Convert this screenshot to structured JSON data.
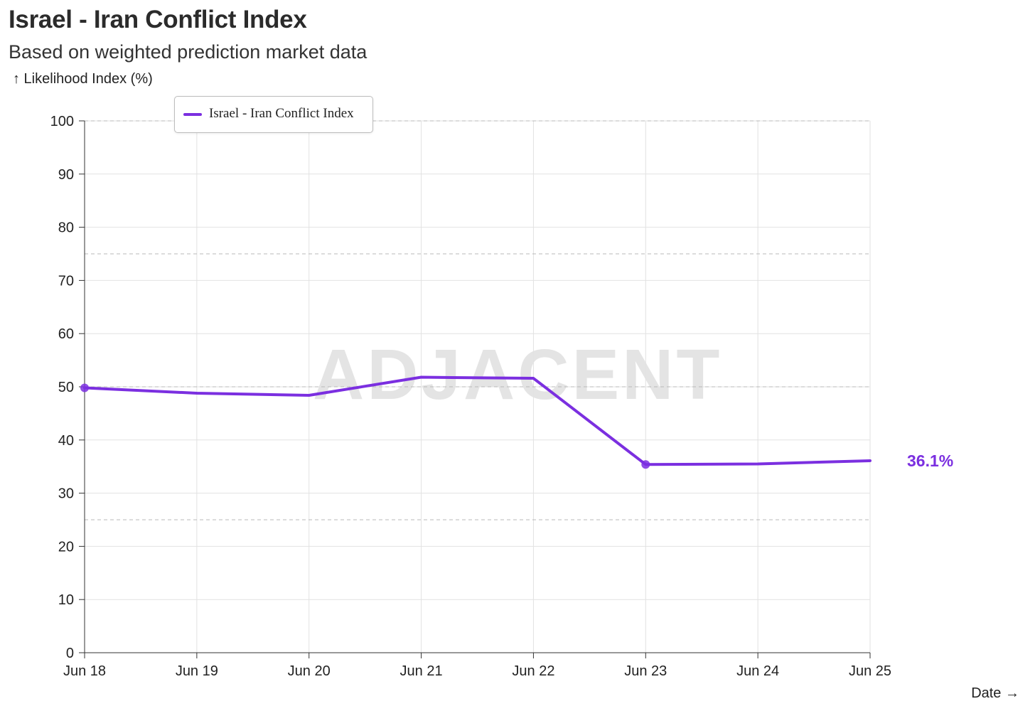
{
  "title": "Israel - Iran Conflict Index",
  "subtitle": "Based on weighted prediction market data",
  "watermark": "ADJACENT",
  "colors": {
    "series": "#7b2fe0",
    "grid": "#e2e2e2",
    "dashed": "#b8b8b8",
    "axis": "#333333"
  },
  "chart_data": {
    "type": "line",
    "title": "Israel - Iran Conflict Index",
    "subtitle": "Based on weighted prediction market data",
    "ylabel": "↑ Likelihood Index (%)",
    "xlabel": "Date →",
    "ylim": [
      0,
      100
    ],
    "yticks": [
      0,
      10,
      20,
      30,
      40,
      50,
      60,
      70,
      80,
      90,
      100
    ],
    "dashed_reference_lines": [
      25,
      50,
      75,
      100
    ],
    "categories": [
      "Jun 18",
      "Jun 19",
      "Jun 20",
      "Jun 21",
      "Jun 22",
      "Jun 23",
      "Jun 24",
      "Jun 25"
    ],
    "grid": true,
    "legend_position": "top-left",
    "series": [
      {
        "name": "Israel - Iran Conflict Index",
        "color": "#7b2fe0",
        "values": [
          49.8,
          48.8,
          48.4,
          51.8,
          51.6,
          35.4,
          35.5,
          36.1
        ],
        "markers_at": [
          "Jun 18",
          "Jun 23"
        ]
      }
    ],
    "end_label": "36.1%"
  }
}
